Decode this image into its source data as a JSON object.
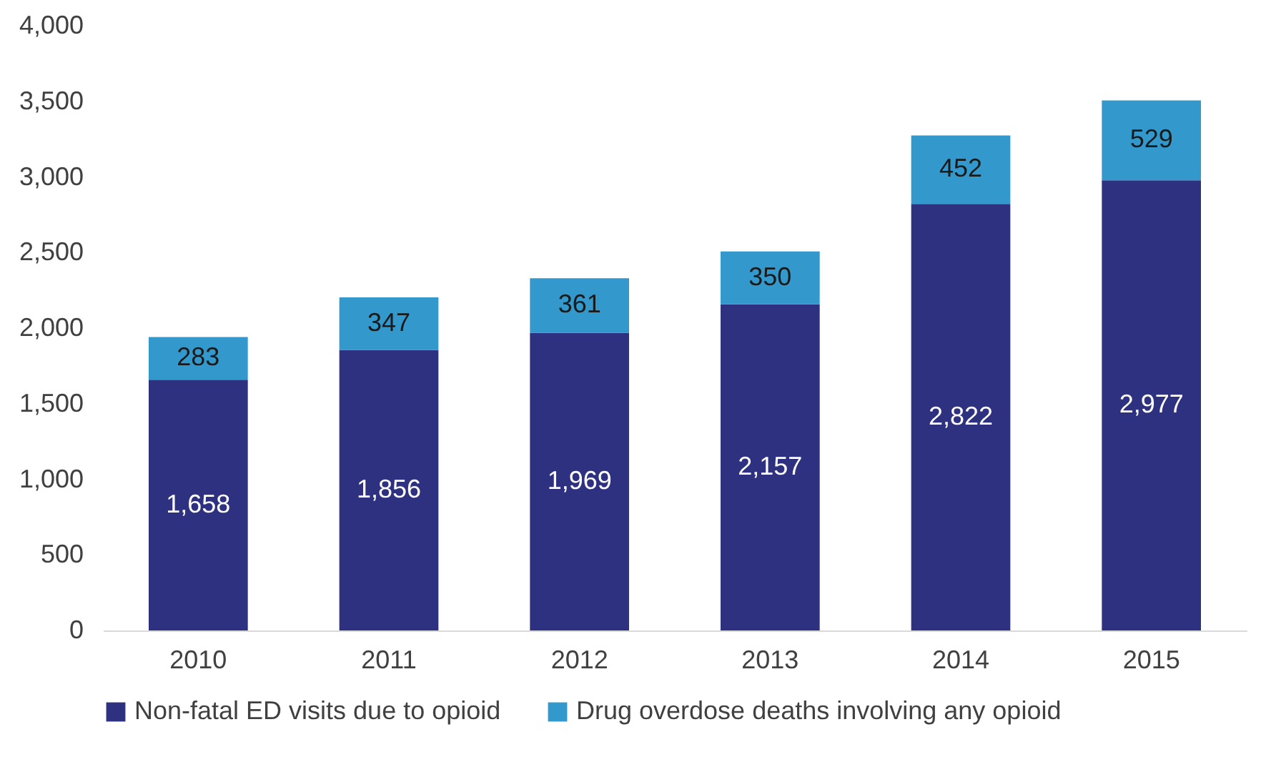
{
  "chart_data": {
    "type": "bar",
    "stacked": true,
    "categories": [
      "2010",
      "2011",
      "2012",
      "2013",
      "2014",
      "2015"
    ],
    "series": [
      {
        "name": "Non-fatal ED visits due to opioid",
        "color": "#2e3180",
        "values": [
          1658,
          1856,
          1969,
          2157,
          2822,
          2977
        ],
        "value_labels": [
          "1,658",
          "1,856",
          "1,969",
          "2,157",
          "2,822",
          "2,977"
        ]
      },
      {
        "name": "Drug overdose deaths involving any opioid",
        "color": "#3399cc",
        "values": [
          283,
          347,
          361,
          350,
          452,
          529
        ],
        "value_labels": [
          "283",
          "347",
          "361",
          "350",
          "452",
          "529"
        ]
      }
    ],
    "ylim": [
      0,
      4000
    ],
    "yticks": [
      0,
      {
        "value": 500,
        "label": "500"
      },
      {
        "value": 1000,
        "label": "1,000"
      },
      {
        "value": 1500,
        "label": "1,500"
      },
      {
        "value": 2000,
        "label": "2,000"
      },
      {
        "value": 2500,
        "label": "2,500"
      },
      {
        "value": 3000,
        "label": "3,000"
      },
      {
        "value": 3500,
        "label": "3,500"
      },
      {
        "value": 4000,
        "label": "4,000"
      }
    ],
    "legend": "bottom",
    "grid": false
  }
}
